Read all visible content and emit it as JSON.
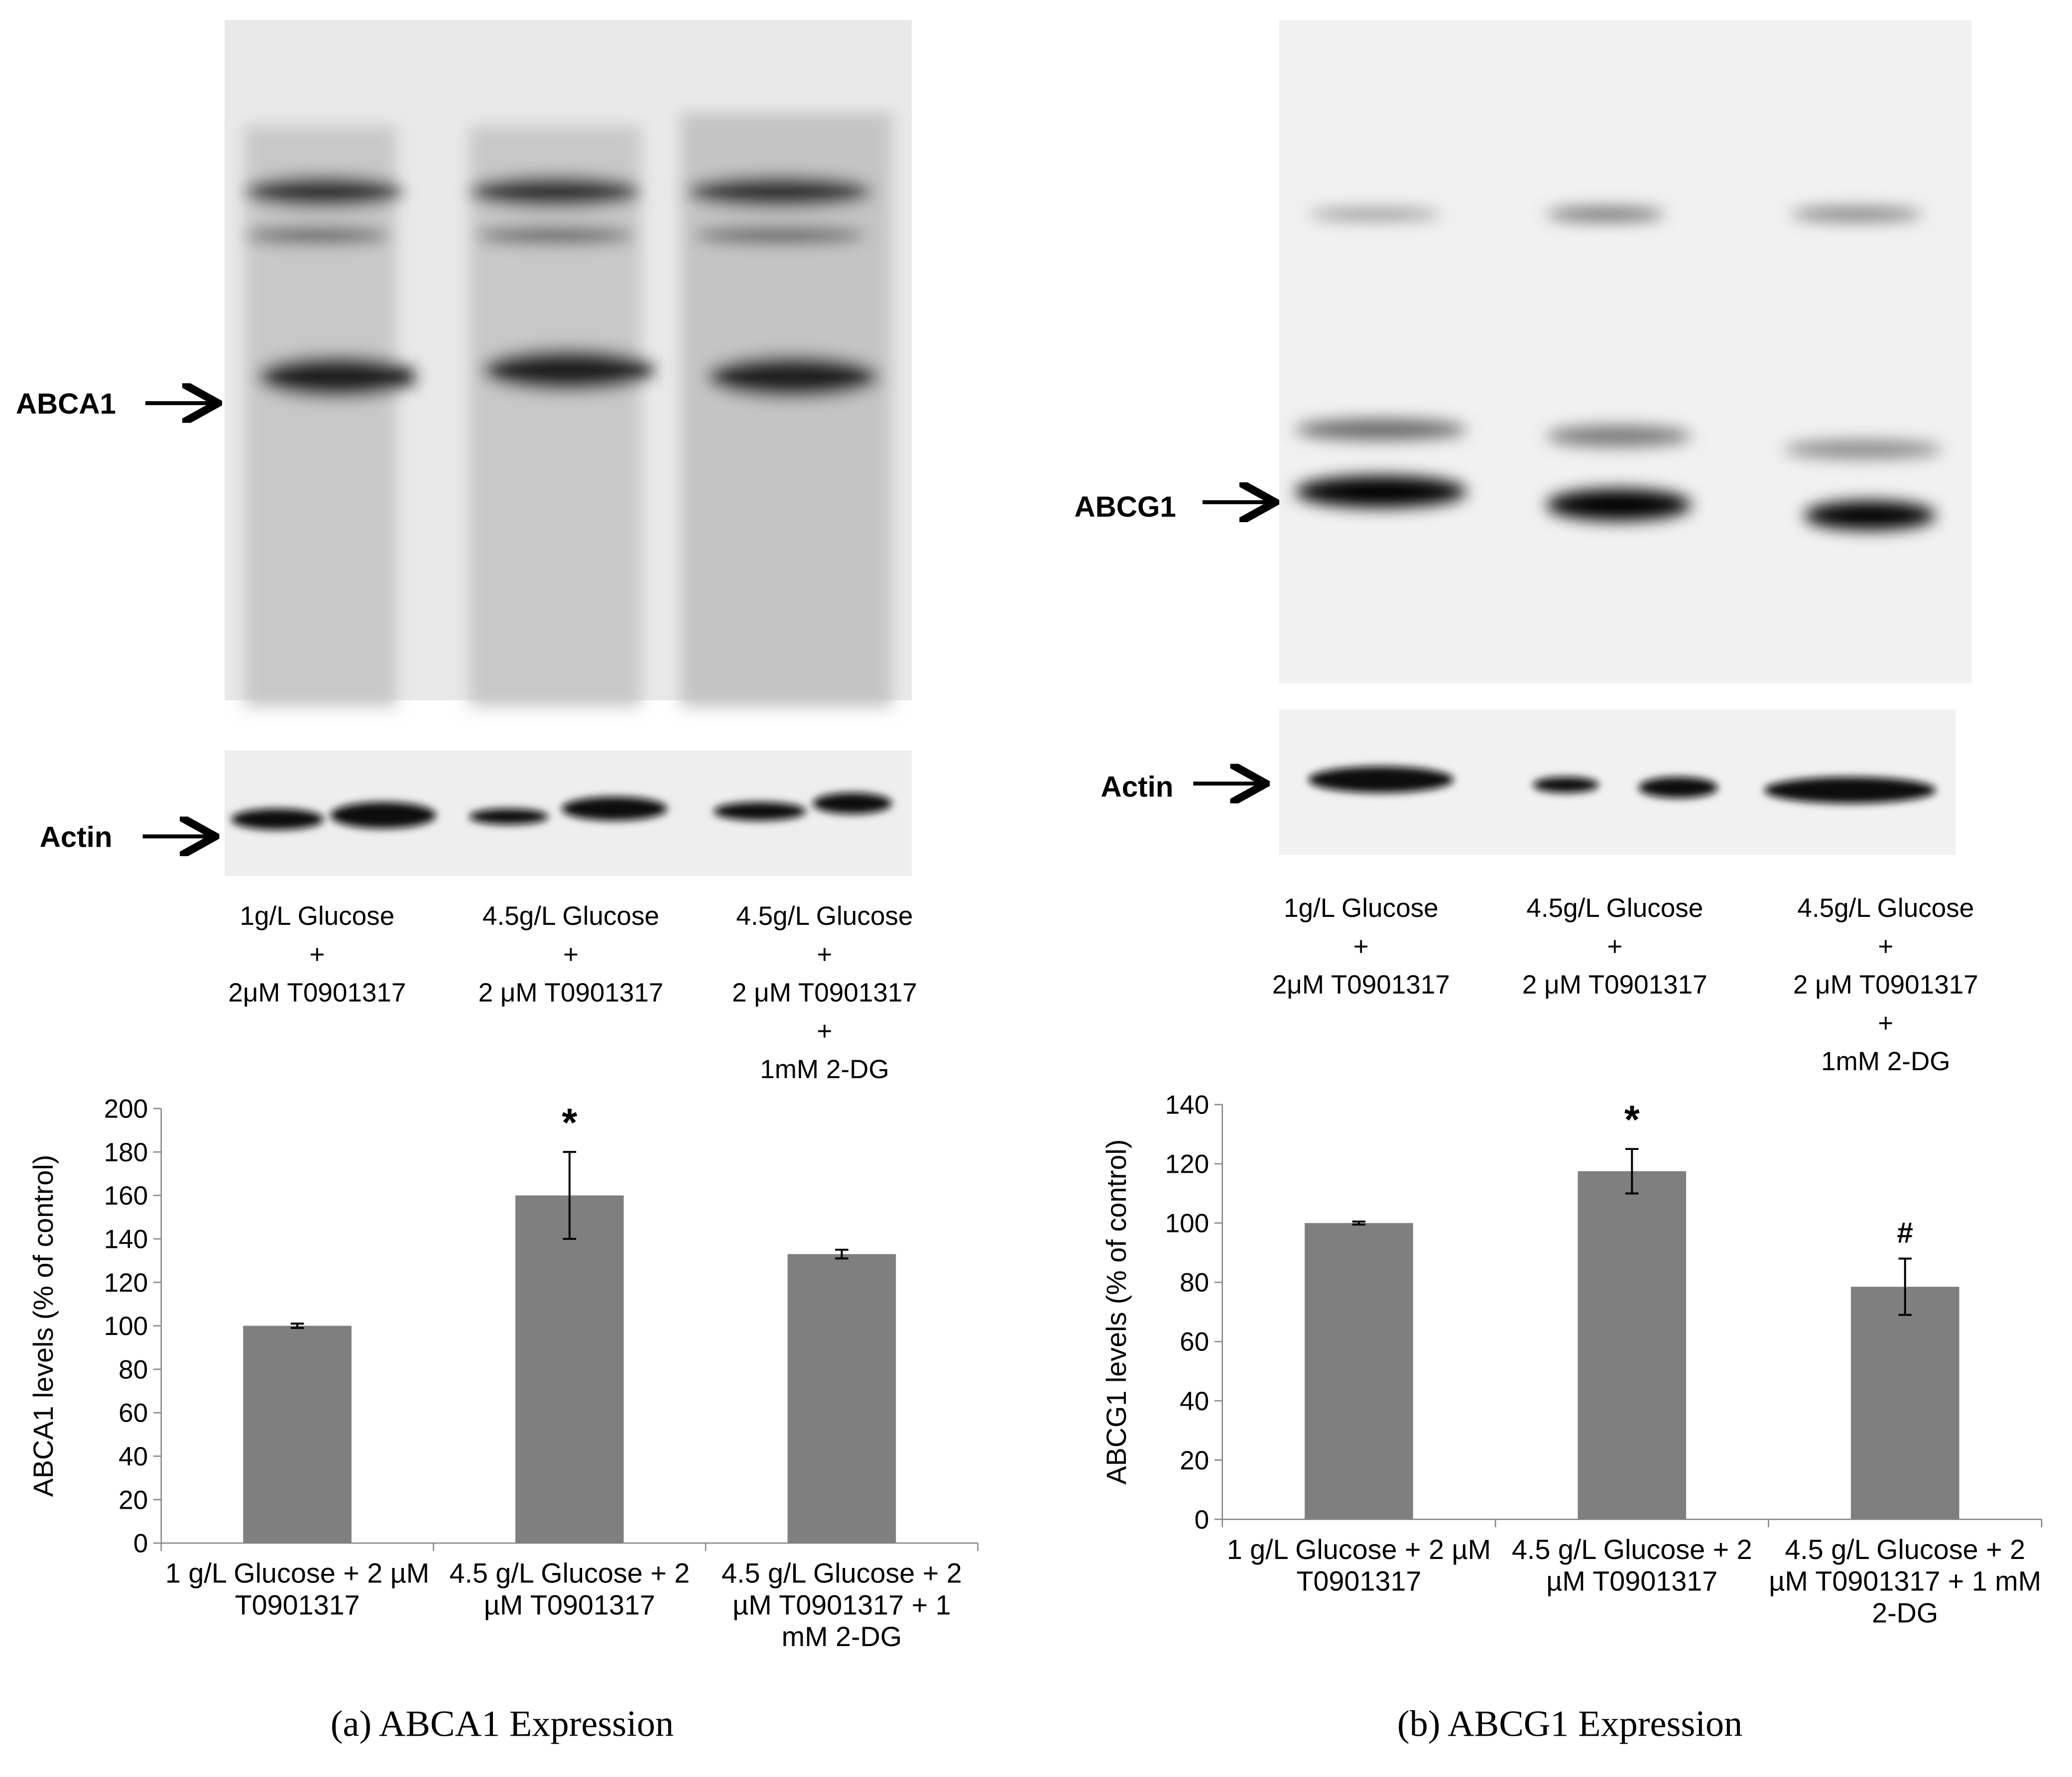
{
  "chart_data": [
    {
      "type": "bar",
      "y_label": "ABCA1 levels (% of control)",
      "categories": [
        "1 g/L Glucose + 2 µM T0901317",
        "4.5 g/L Glucose + 2 µM T0901317",
        "4.5 g/L Glucose + 2 µM T0901317 + 1 mM 2-DG"
      ],
      "values": [
        100,
        160,
        133
      ],
      "errors": [
        1,
        20,
        2
      ],
      "annotations": [
        null,
        "*",
        null
      ],
      "color": "#7f7f7f",
      "ylim": [
        0,
        200
      ],
      "yticks": [
        0,
        20,
        40,
        60,
        80,
        100,
        120,
        140,
        160,
        180,
        200
      ],
      "caption": "(a) ABCA1 Expression"
    },
    {
      "type": "bar",
      "y_label": "ABCG1 levels (% of control)",
      "categories": [
        "1 g/L Glucose + 2 µM T0901317",
        "4.5 g/L Glucose + 2 µM T0901317",
        "4.5 g/L Glucose + 2 µM T0901317 + 1 mM 2-DG"
      ],
      "values": [
        100,
        117.5,
        78.5
      ],
      "errors": [
        0.5,
        7.5,
        9.5
      ],
      "annotations": [
        null,
        "*",
        "#"
      ],
      "color": "#7f7f7f",
      "ylim": [
        0,
        140
      ],
      "yticks": [
        0,
        20,
        40,
        60,
        80,
        100,
        120,
        140
      ],
      "caption": "(b) ABCG1 Expression"
    }
  ],
  "blots": [
    {
      "protein": "ABCA1",
      "loading": "Actin",
      "lanes": [
        [
          "1g/L Glucose",
          "+",
          "2μM T0901317"
        ],
        [
          "4.5g/L Glucose",
          "+",
          "2 μM T0901317"
        ],
        [
          "4.5g/L Glucose",
          "+",
          "2 μM T0901317",
          "+",
          "1mM 2-DG"
        ]
      ]
    },
    {
      "protein": "ABCG1",
      "loading": "Actin",
      "lanes": [
        [
          "1g/L Glucose",
          "+",
          "2μM T0901317"
        ],
        [
          "4.5g/L Glucose",
          "+",
          "2 μM T0901317"
        ],
        [
          "4.5g/L Glucose",
          "+",
          "2 μM T0901317",
          "+",
          "1mM 2-DG"
        ]
      ]
    }
  ]
}
